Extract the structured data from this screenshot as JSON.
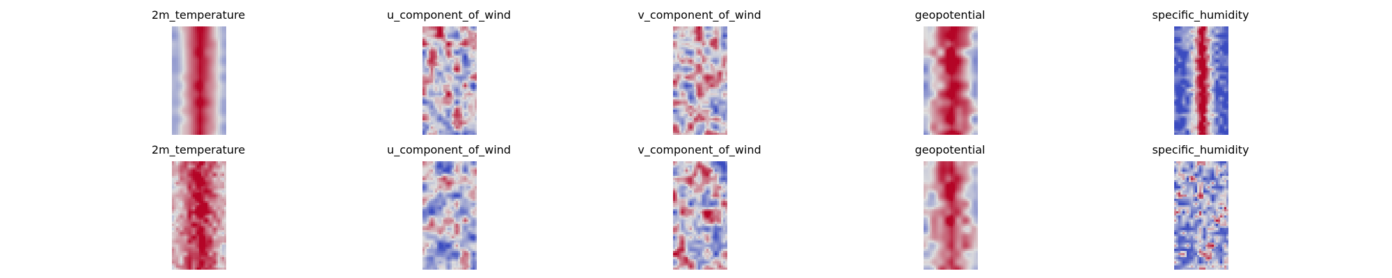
{
  "chart_data": {
    "type": "heatmap",
    "colormap": "coolwarm",
    "layout": {
      "rows": 2,
      "cols": 5
    },
    "axes_visible": false,
    "colors": {
      "cold": "#3b4cc0",
      "neutral": "#dddddd",
      "warm": "#b40426"
    },
    "panels": [
      {
        "row": 0,
        "col": 0,
        "title": "2m_temperature",
        "pattern": "warm-core"
      },
      {
        "row": 0,
        "col": 1,
        "title": "u_component_of_wind",
        "pattern": "mixed"
      },
      {
        "row": 0,
        "col": 2,
        "title": "v_component_of_wind",
        "pattern": "mixed"
      },
      {
        "row": 0,
        "col": 3,
        "title": "geopotential",
        "pattern": "warm-core-mottled"
      },
      {
        "row": 0,
        "col": 4,
        "title": "specific_humidity",
        "pattern": "cold-with-warm-streak"
      },
      {
        "row": 1,
        "col": 0,
        "title": "2m_temperature",
        "pattern": "warm-grainy"
      },
      {
        "row": 1,
        "col": 1,
        "title": "u_component_of_wind",
        "pattern": "mostly-cool-mixed"
      },
      {
        "row": 1,
        "col": 2,
        "title": "v_component_of_wind",
        "pattern": "mixed"
      },
      {
        "row": 1,
        "col": 3,
        "title": "geopotential",
        "pattern": "warm-core-mottled"
      },
      {
        "row": 1,
        "col": 4,
        "title": "specific_humidity",
        "pattern": "cool-speckled"
      }
    ]
  }
}
